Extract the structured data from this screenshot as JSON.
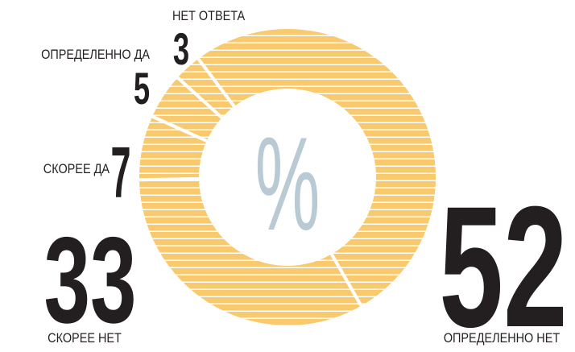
{
  "chart_data": {
    "type": "donut",
    "center_label": "%",
    "categories": [
      "ОПРЕДЕЛЕННО НЕТ",
      "СКОРЕЕ НЕТ",
      "СКОРЕЕ ДА",
      "ОПРЕДЕЛЕННО ДА",
      "НЕТ ОТВЕТА"
    ],
    "values": [
      52,
      33,
      7,
      5,
      3
    ],
    "color": "#f9c96e"
  }
}
